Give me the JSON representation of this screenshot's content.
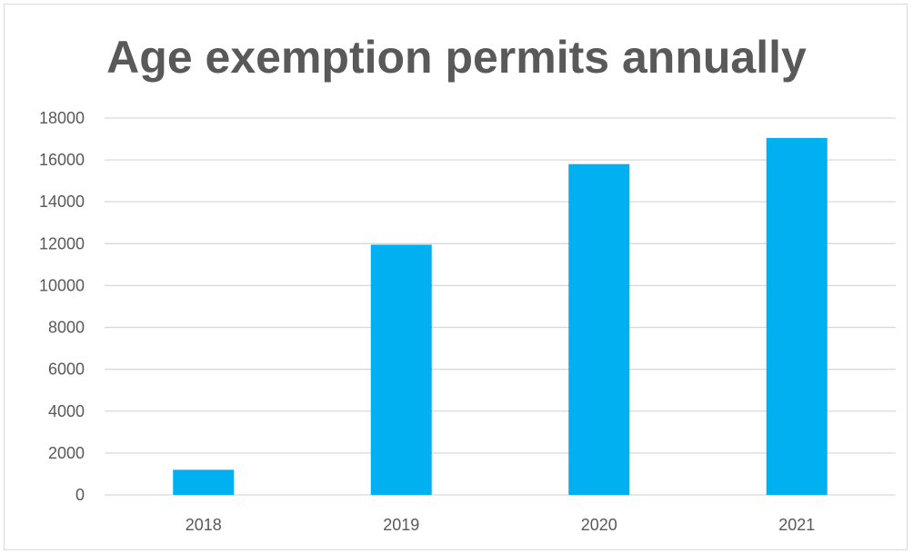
{
  "chart_data": {
    "type": "bar",
    "title": "Age exemption permits annually",
    "categories": [
      "2018",
      "2019",
      "2020",
      "2021"
    ],
    "values": [
      1200,
      11950,
      15800,
      17050
    ],
    "ylim": [
      0,
      18000
    ],
    "yticks": [
      0,
      2000,
      4000,
      6000,
      8000,
      10000,
      12000,
      14000,
      16000,
      18000
    ],
    "grid": true,
    "legend": "none",
    "colors": {
      "bar": "#00b0f0",
      "grid": "#d9d9d9",
      "text": "#595959"
    }
  }
}
